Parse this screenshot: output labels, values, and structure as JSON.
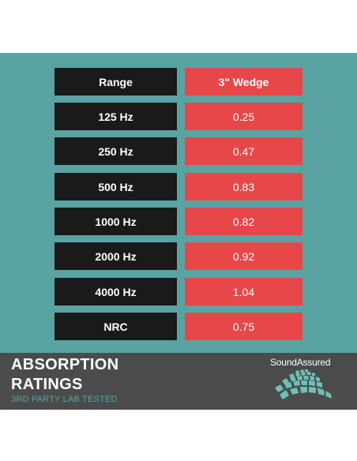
{
  "table": {
    "header": {
      "left": "Range",
      "right": "3\" Wedge"
    },
    "rows": [
      {
        "range": "125 Hz",
        "value": "0.25"
      },
      {
        "range": "250 Hz",
        "value": "0.47"
      },
      {
        "range": "500 Hz",
        "value": "0.83"
      },
      {
        "range": "1000 Hz",
        "value": "0.82"
      },
      {
        "range": "2000 Hz",
        "value": "0.92"
      },
      {
        "range": "4000 Hz",
        "value": "1.04"
      },
      {
        "range": "NRC",
        "value": "0.75"
      }
    ]
  },
  "footer": {
    "title_line1": "ABSORPTION",
    "title_line2": "RATINGS",
    "subtitle": "3RD PARTY LAB TESTED",
    "brand": "SoundAssured"
  },
  "colors": {
    "teal": "#5aa3a3",
    "dark_cell": "#1a1a1a",
    "red_cell": "#e8474a",
    "footer_bg": "#4b4b4b"
  },
  "icons": {
    "logo": "soundassured-wave-logo"
  }
}
